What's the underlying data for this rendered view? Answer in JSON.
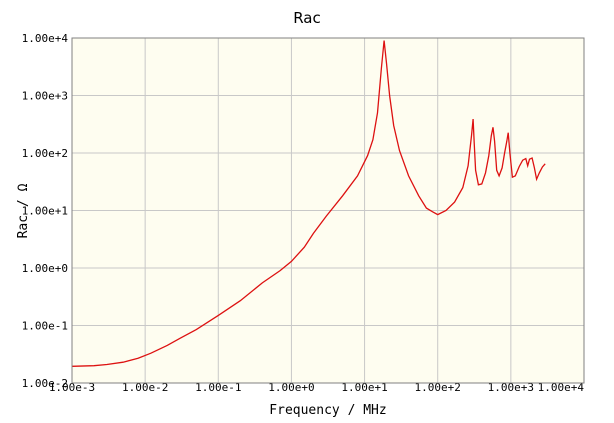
{
  "chart_data": {
    "type": "line",
    "title": "Rac",
    "xlabel": "Frequency / MHz",
    "ylabel": "Rac / Ω",
    "xscale": "log",
    "yscale": "log",
    "xlim": [
      0.001,
      10000
    ],
    "ylim": [
      0.01,
      10000
    ],
    "grid": true,
    "x_tick_labels": [
      "1.00e-3",
      "1.00e-2",
      "1.00e-1",
      "1.00e+0",
      "1.00e+1",
      "1.00e+2",
      "1.00e+3",
      "1.00e+4"
    ],
    "y_tick_labels": [
      "1.00e-2",
      "1.00e-1",
      "1.00e+0",
      "1.00e+1",
      "1.00e+2",
      "1.00e+3",
      "1.00e+4"
    ],
    "colors": {
      "plot_bg": "#fefdf0",
      "line": "#dd1111",
      "grid": "#c8c8c8",
      "axis": "#808080"
    },
    "series": [
      {
        "values": [
          [
            0.001,
            0.0195
          ],
          [
            0.002,
            0.02
          ],
          [
            0.003,
            0.021
          ],
          [
            0.005,
            0.023
          ],
          [
            0.008,
            0.027
          ],
          [
            0.012,
            0.033
          ],
          [
            0.02,
            0.045
          ],
          [
            0.03,
            0.06
          ],
          [
            0.05,
            0.085
          ],
          [
            0.1,
            0.15
          ],
          [
            0.2,
            0.27
          ],
          [
            0.4,
            0.55
          ],
          [
            0.7,
            0.9
          ],
          [
            1.0,
            1.3
          ],
          [
            1.5,
            2.3
          ],
          [
            2,
            4
          ],
          [
            3,
            8
          ],
          [
            5,
            18
          ],
          [
            8,
            40
          ],
          [
            11,
            90
          ],
          [
            13,
            170
          ],
          [
            15,
            500
          ],
          [
            17,
            3000
          ],
          [
            18.5,
            9000
          ],
          [
            20,
            3500
          ],
          [
            22,
            1000
          ],
          [
            25,
            300
          ],
          [
            30,
            110
          ],
          [
            40,
            40
          ],
          [
            55,
            18
          ],
          [
            70,
            11
          ],
          [
            85,
            9.5
          ],
          [
            100,
            8.5
          ],
          [
            130,
            10
          ],
          [
            170,
            14
          ],
          [
            220,
            25
          ],
          [
            260,
            60
          ],
          [
            290,
            200
          ],
          [
            305,
            390
          ],
          [
            315,
            150
          ],
          [
            330,
            50
          ],
          [
            360,
            28
          ],
          [
            400,
            29
          ],
          [
            450,
            45
          ],
          [
            500,
            90
          ],
          [
            540,
            200
          ],
          [
            570,
            280
          ],
          [
            600,
            160
          ],
          [
            640,
            50
          ],
          [
            690,
            40
          ],
          [
            760,
            55
          ],
          [
            820,
            100
          ],
          [
            880,
            160
          ],
          [
            920,
            225
          ],
          [
            970,
            100
          ],
          [
            1050,
            38
          ],
          [
            1150,
            40
          ],
          [
            1300,
            58
          ],
          [
            1450,
            75
          ],
          [
            1600,
            80
          ],
          [
            1700,
            60
          ],
          [
            1800,
            78
          ],
          [
            1950,
            82
          ],
          [
            2100,
            55
          ],
          [
            2250,
            35
          ],
          [
            2450,
            45
          ],
          [
            2700,
            57
          ],
          [
            2950,
            65
          ]
        ]
      }
    ]
  }
}
